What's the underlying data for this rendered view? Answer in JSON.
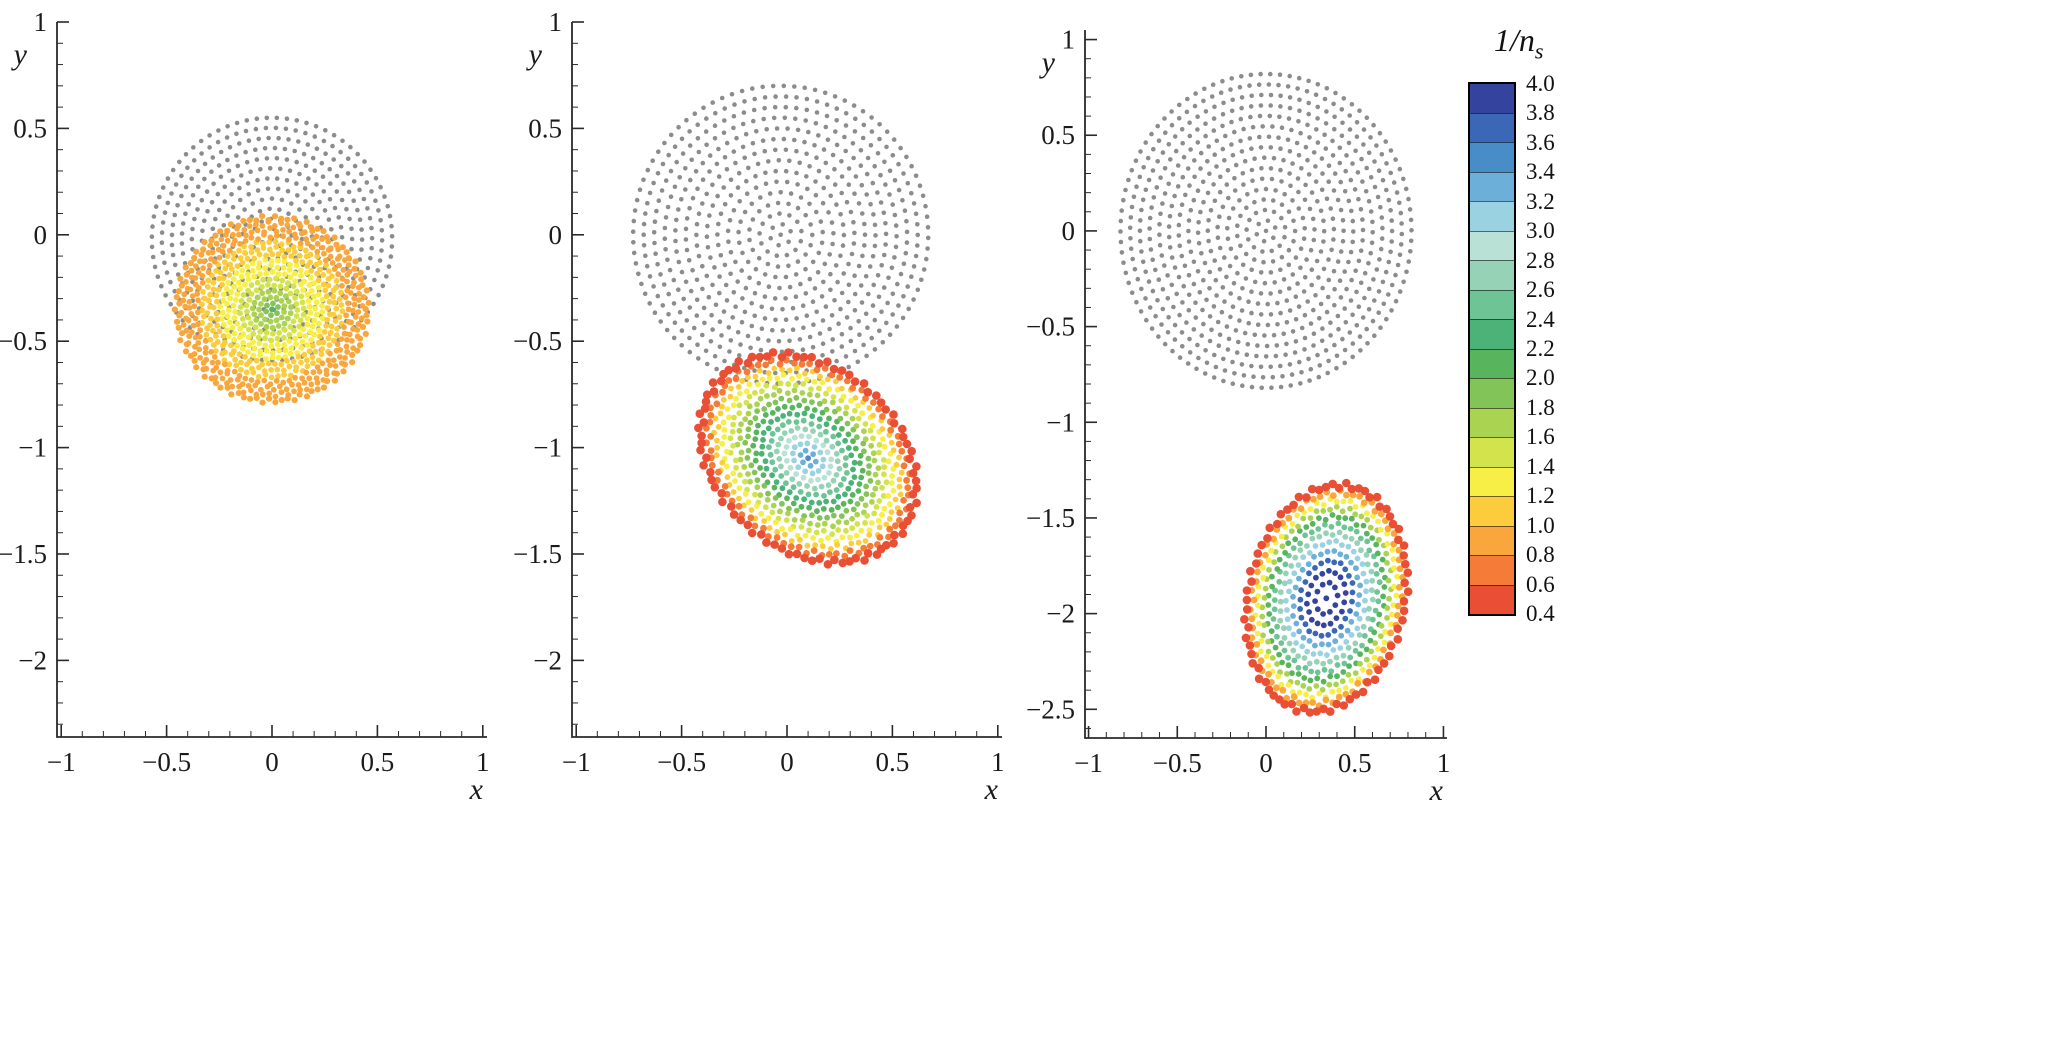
{
  "figure": {
    "background": "#ffffff",
    "text_color": "#1a1a1a",
    "axis_color": "#2a2a2a",
    "colorbar": {
      "title_main": "1/n",
      "title_sub": "s",
      "value_min": 0.4,
      "value_max": 4.0,
      "band_step": 0.2,
      "tick_labels": [
        "4.0",
        "3.8",
        "3.6",
        "3.4",
        "3.2",
        "3.0",
        "2.8",
        "2.6",
        "2.4",
        "2.2",
        "2.0",
        "1.8",
        "1.6",
        "1.4",
        "1.2",
        "1.0",
        "0.8",
        "0.6",
        "0.4"
      ],
      "band_colors_low_to_high": [
        "#e94f35",
        "#f47b38",
        "#f9a73c",
        "#fbcc3c",
        "#f7ee46",
        "#d3e34c",
        "#abd352",
        "#82c458",
        "#58b55e",
        "#4bb377",
        "#6fc495",
        "#96d3b6",
        "#b9e1d6",
        "#9bd2e2",
        "#6cafd8",
        "#488cc8",
        "#3a68b6",
        "#34439e"
      ]
    }
  },
  "chart_data": [
    {
      "type": "scatter",
      "panel": 1,
      "xlabel": "x",
      "ylabel": "y",
      "xlim": [
        -1.02,
        1.02
      ],
      "ylim": [
        -2.36,
        1.0
      ],
      "xtick_values": [
        -1,
        -0.5,
        0,
        0.5,
        1
      ],
      "xtick_labels": [
        "−1",
        "−0.5",
        "0",
        "0.5",
        "1"
      ],
      "ytick_values": [
        1,
        0.5,
        0,
        -0.5,
        -1,
        -1.5,
        -2
      ],
      "ytick_labels": [
        "1",
        "0.5",
        "0",
        "−0.5",
        "−1",
        "−1.5",
        "−2"
      ],
      "grid": false,
      "series": [
        {
          "name": "reference-particle-disc",
          "kind": "gray-disc",
          "center": [
            0,
            -0.02
          ],
          "radius": 0.57,
          "rings": 12,
          "color": "#8c8c8c"
        },
        {
          "name": "droplet-particles",
          "kind": "colored-disc",
          "center": [
            0.0,
            -0.35
          ],
          "rx": 0.45,
          "ry": 0.43,
          "rotation_deg": 0,
          "rings": 15,
          "radial_exponent": 1.0,
          "value_center": 2.0,
          "value_rim": 0.8,
          "value_exponent": 0.7,
          "rim_emphasis": false
        }
      ]
    },
    {
      "type": "scatter",
      "panel": 2,
      "xlabel": "x",
      "ylabel": "y",
      "xlim": [
        -1.02,
        1.02
      ],
      "ylim": [
        -2.36,
        1.0
      ],
      "xtick_values": [
        -1,
        -0.5,
        0,
        0.5,
        1
      ],
      "xtick_labels": [
        "−1",
        "−0.5",
        "0",
        "0.5",
        "1"
      ],
      "ytick_values": [
        1,
        0.5,
        0,
        -0.5,
        -1,
        -1.5,
        -2
      ],
      "ytick_labels": [
        "1",
        "0.5",
        "0",
        "−0.5",
        "−1",
        "−1.5",
        "−2"
      ],
      "grid": false,
      "series": [
        {
          "name": "reference-particle-disc",
          "kind": "gray-disc",
          "center": [
            -0.03,
            0.0
          ],
          "radius": 0.7,
          "rings": 14,
          "color": "#8c8c8c"
        },
        {
          "name": "droplet-particles",
          "kind": "colored-disc",
          "center": [
            0.1,
            -1.05
          ],
          "rx": 0.56,
          "ry": 0.43,
          "rotation_deg": -40,
          "rings": 14,
          "radial_exponent": 1.0,
          "value_center": 3.5,
          "value_rim": 0.55,
          "value_exponent": 1.1,
          "rim_emphasis": true
        }
      ]
    },
    {
      "type": "scatter",
      "panel": 3,
      "xlabel": "x",
      "ylabel": "y",
      "xlim": [
        -1.02,
        1.02
      ],
      "ylim": [
        -2.65,
        1.05
      ],
      "xtick_values": [
        -1,
        -0.5,
        0,
        0.5,
        1
      ],
      "xtick_labels": [
        "−1",
        "−0.5",
        "0",
        "0.5",
        "1"
      ],
      "ytick_values": [
        1,
        0.5,
        0,
        -0.5,
        -1,
        -1.5,
        -2,
        -2.5
      ],
      "ytick_labels": [
        "1",
        "0.5",
        "0",
        "−0.5",
        "−1",
        "−1.5",
        "−2",
        "−2.5"
      ],
      "grid": false,
      "series": [
        {
          "name": "reference-particle-disc",
          "kind": "gray-disc",
          "center": [
            0.0,
            0.0
          ],
          "radius": 0.82,
          "rings": 15,
          "color": "#8c8c8c"
        },
        {
          "name": "droplet-particles",
          "kind": "colored-disc",
          "center": [
            0.34,
            -1.92
          ],
          "rx": 0.44,
          "ry": 0.6,
          "rotation_deg": -15,
          "rings": 12,
          "radial_exponent": 0.8,
          "value_center": 4.1,
          "value_rim": 0.45,
          "value_exponent": 1.8,
          "rim_emphasis": true
        }
      ]
    }
  ]
}
